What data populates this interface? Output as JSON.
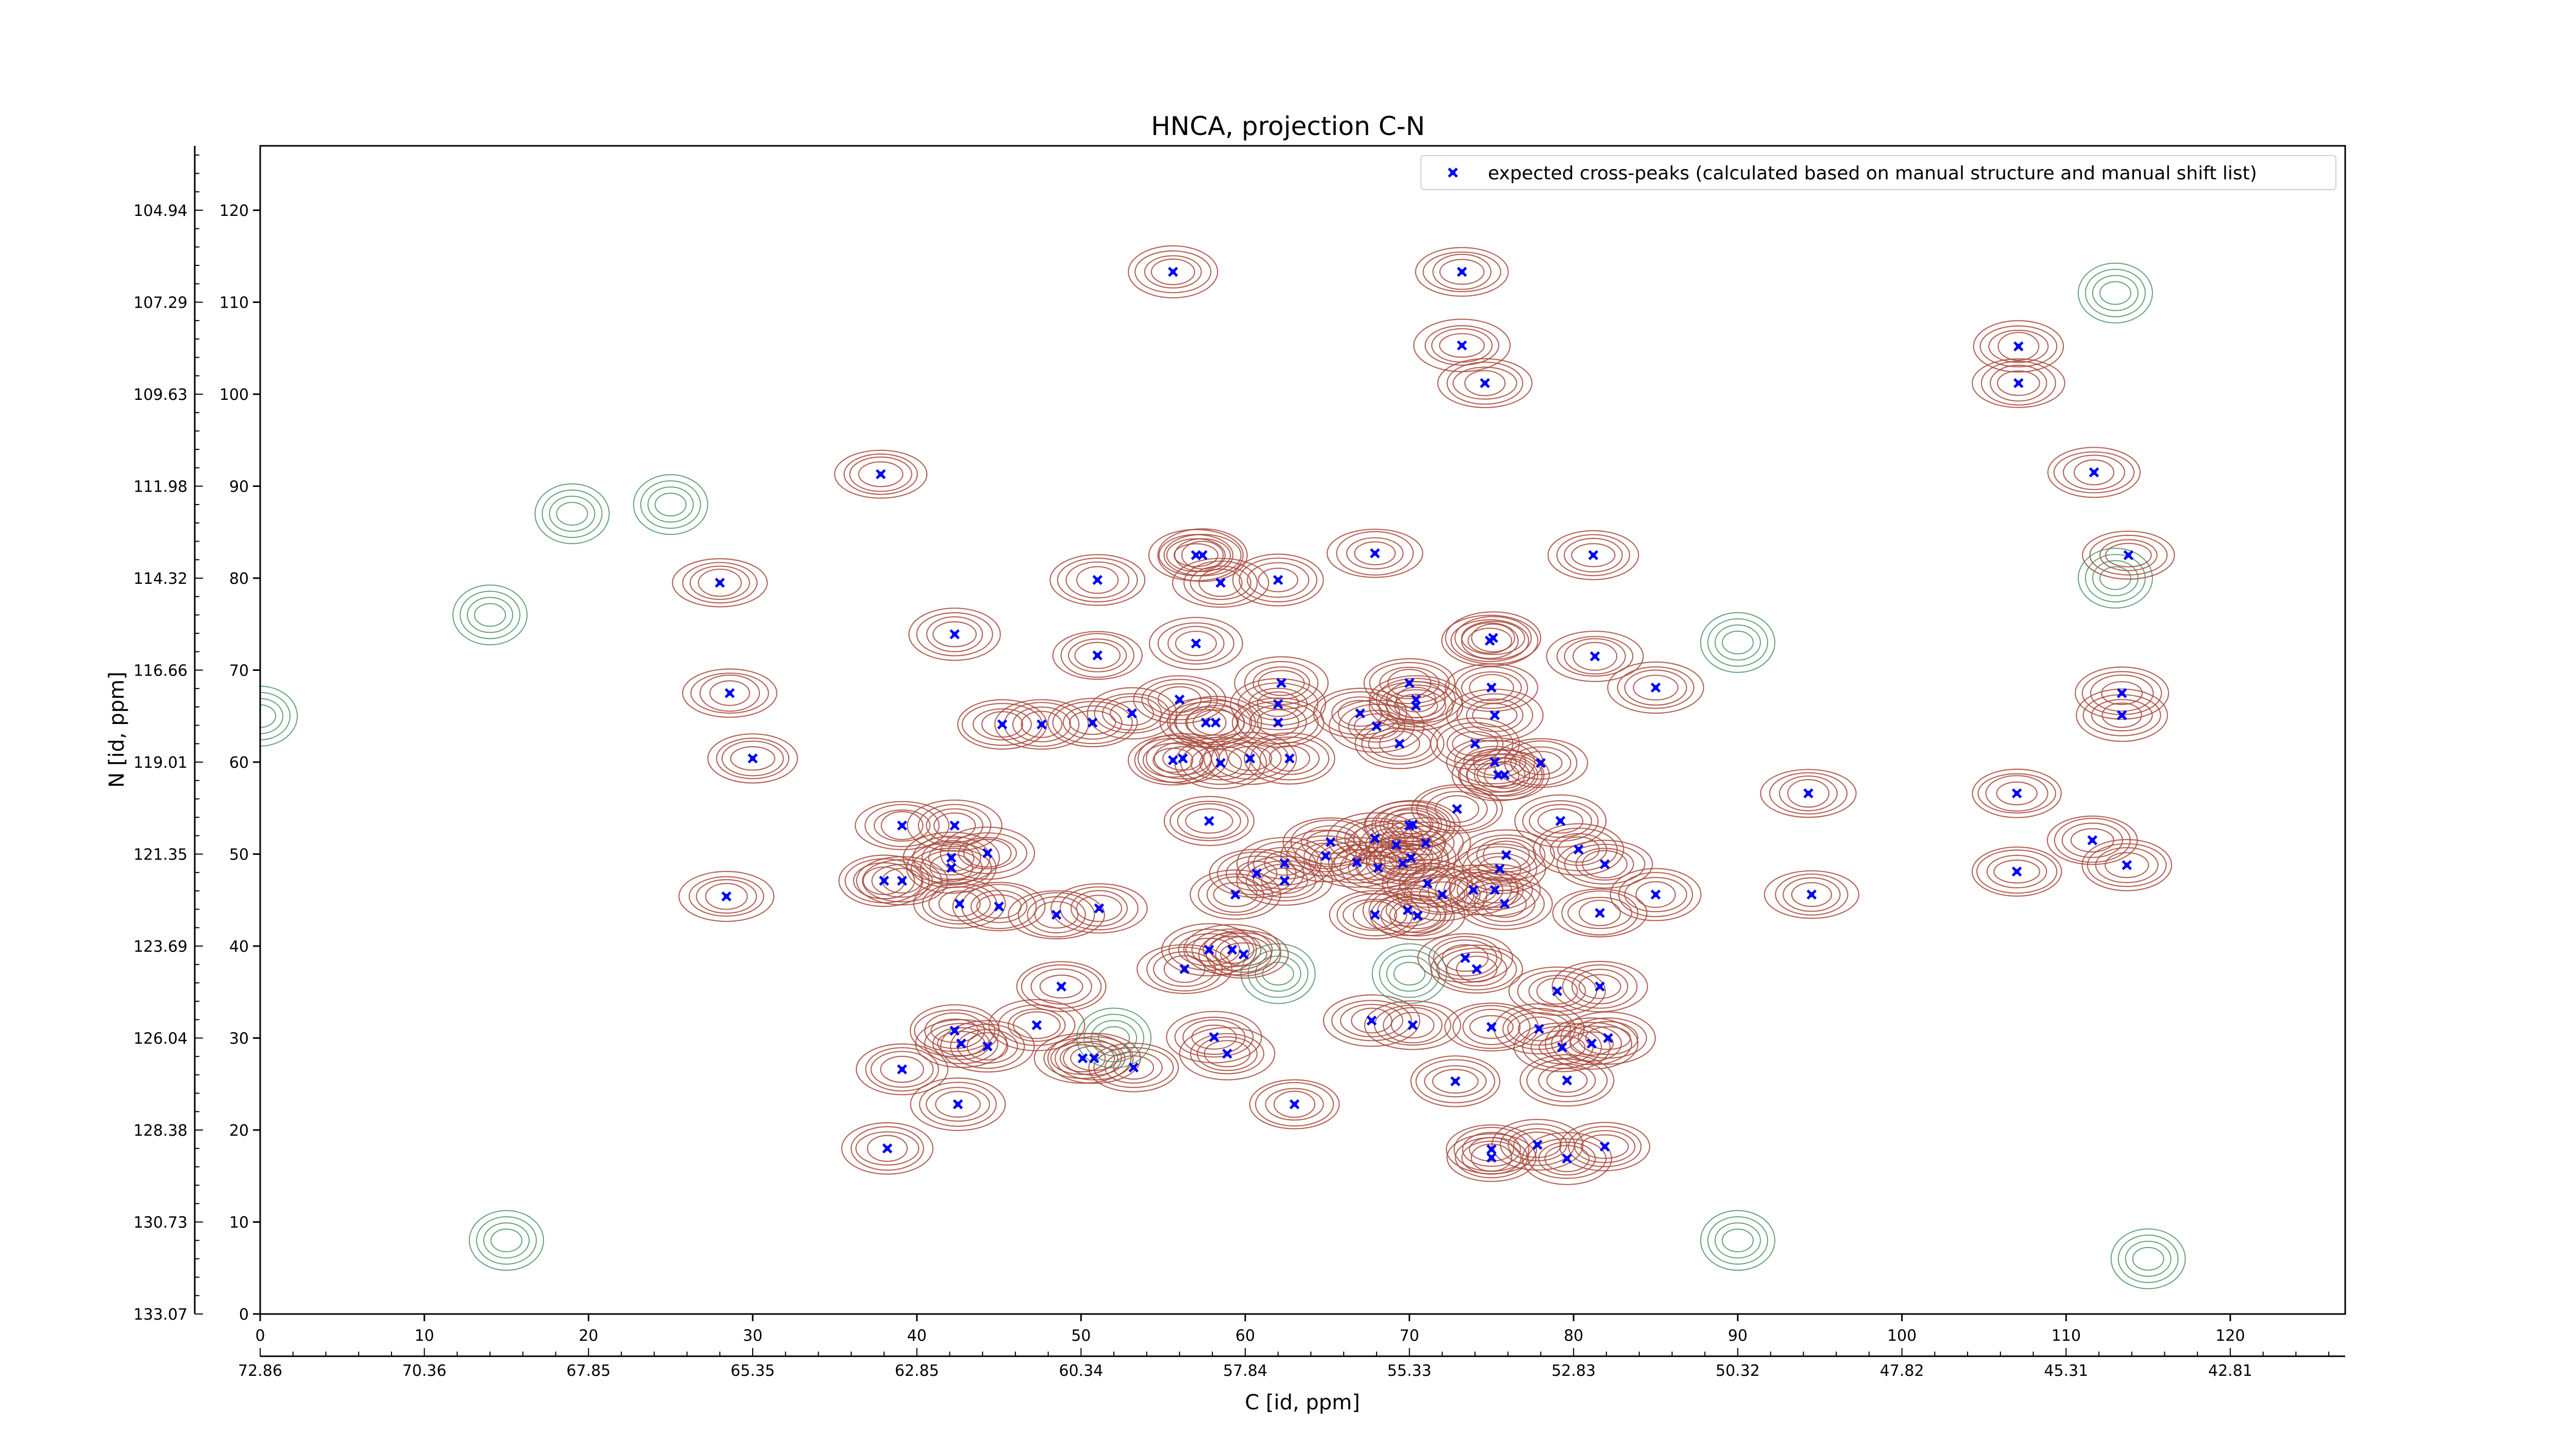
{
  "chart_data": {
    "type": "scatter",
    "title": "HNCA, projection C-N",
    "xlabel": "C [id, ppm]",
    "ylabel": "N [id, ppm]",
    "xlim": [
      0,
      127
    ],
    "ylim": [
      0,
      127
    ],
    "x_ticks": [
      0,
      10,
      20,
      30,
      40,
      50,
      60,
      70,
      80,
      90,
      100,
      110,
      120
    ],
    "y_ticks": [
      0,
      10,
      20,
      30,
      40,
      50,
      60,
      70,
      80,
      90,
      100,
      110,
      120
    ],
    "x_ppm_ticks": [
      {
        "pos": 0,
        "label": "72.86"
      },
      {
        "pos": 10,
        "label": "70.36"
      },
      {
        "pos": 20,
        "label": "67.85"
      },
      {
        "pos": 30,
        "label": "65.35"
      },
      {
        "pos": 40,
        "label": "62.85"
      },
      {
        "pos": 50,
        "label": "60.34"
      },
      {
        "pos": 60,
        "label": "57.84"
      },
      {
        "pos": 70,
        "label": "55.33"
      },
      {
        "pos": 80,
        "label": "52.83"
      },
      {
        "pos": 90,
        "label": "50.32"
      },
      {
        "pos": 100,
        "label": "47.82"
      },
      {
        "pos": 110,
        "label": "45.31"
      },
      {
        "pos": 120,
        "label": "42.81"
      }
    ],
    "y_ppm_ticks": [
      {
        "pos": 0,
        "label": "133.07"
      },
      {
        "pos": 10,
        "label": "130.73"
      },
      {
        "pos": 20,
        "label": "128.38"
      },
      {
        "pos": 30,
        "label": "126.04"
      },
      {
        "pos": 40,
        "label": "123.69"
      },
      {
        "pos": 50,
        "label": "121.35"
      },
      {
        "pos": 60,
        "label": "119.01"
      },
      {
        "pos": 70,
        "label": "116.66"
      },
      {
        "pos": 80,
        "label": "114.32"
      },
      {
        "pos": 90,
        "label": "111.98"
      },
      {
        "pos": 100,
        "label": "109.63"
      },
      {
        "pos": 110,
        "label": "107.29"
      },
      {
        "pos": 120,
        "label": "104.94"
      }
    ],
    "grid": false,
    "legend_position": "top-right",
    "series": [
      {
        "name": "expected cross-peaks (calculated based on manual structure and manual shift list)",
        "color": "#0000ff",
        "marker": "x",
        "points": [
          [
            55.6,
            113.3
          ],
          [
            73.2,
            113.3
          ],
          [
            73.2,
            105.3
          ],
          [
            74.6,
            101.2
          ],
          [
            107.1,
            105.2
          ],
          [
            107.1,
            101.2
          ],
          [
            37.8,
            91.3
          ],
          [
            111.7,
            91.5
          ],
          [
            28.0,
            79.5
          ],
          [
            51.0,
            79.8
          ],
          [
            57.0,
            82.5
          ],
          [
            57.4,
            82.5
          ],
          [
            58.5,
            79.5
          ],
          [
            62.0,
            79.8
          ],
          [
            67.9,
            82.7
          ],
          [
            81.2,
            82.5
          ],
          [
            113.8,
            82.5
          ],
          [
            42.3,
            73.9
          ],
          [
            51.0,
            71.6
          ],
          [
            57.0,
            72.9
          ],
          [
            74.9,
            73.2
          ],
          [
            75.1,
            73.5
          ],
          [
            81.3,
            71.5
          ],
          [
            85.0,
            68.1
          ],
          [
            28.6,
            67.5
          ],
          [
            45.2,
            64.1
          ],
          [
            47.6,
            64.1
          ],
          [
            50.7,
            64.3
          ],
          [
            53.1,
            65.3
          ],
          [
            56.0,
            66.8
          ],
          [
            57.6,
            64.3
          ],
          [
            58.2,
            64.3
          ],
          [
            62.2,
            68.6
          ],
          [
            62.0,
            66.3
          ],
          [
            62.0,
            64.3
          ],
          [
            67.0,
            65.3
          ],
          [
            68.0,
            63.9
          ],
          [
            70.0,
            68.6
          ],
          [
            70.4,
            66.8
          ],
          [
            70.4,
            66.1
          ],
          [
            75.0,
            68.1
          ],
          [
            75.2,
            65.1
          ],
          [
            113.4,
            67.5
          ],
          [
            113.4,
            65.1
          ],
          [
            30.0,
            60.4
          ],
          [
            55.6,
            60.2
          ],
          [
            56.2,
            60.4
          ],
          [
            58.5,
            59.9
          ],
          [
            60.3,
            60.4
          ],
          [
            62.7,
            60.4
          ],
          [
            69.4,
            62.0
          ],
          [
            74.0,
            62.0
          ],
          [
            75.2,
            60.0
          ],
          [
            75.4,
            58.6
          ],
          [
            75.8,
            58.6
          ],
          [
            78.0,
            59.9
          ],
          [
            94.3,
            56.6
          ],
          [
            107.0,
            56.6
          ],
          [
            39.1,
            53.1
          ],
          [
            42.3,
            53.1
          ],
          [
            57.8,
            53.6
          ],
          [
            72.9,
            54.9
          ],
          [
            79.2,
            53.6
          ],
          [
            65.2,
            51.3
          ],
          [
            67.9,
            51.7
          ],
          [
            69.2,
            51.0
          ],
          [
            70.0,
            53.1
          ],
          [
            70.2,
            53.2
          ],
          [
            71.0,
            51.2
          ],
          [
            75.9,
            49.9
          ],
          [
            80.3,
            50.5
          ],
          [
            42.1,
            49.6
          ],
          [
            42.1,
            48.5
          ],
          [
            44.3,
            50.1
          ],
          [
            62.4,
            49.0
          ],
          [
            64.9,
            49.8
          ],
          [
            69.6,
            49.0
          ],
          [
            70.1,
            49.6
          ],
          [
            75.5,
            48.4
          ],
          [
            81.9,
            48.9
          ],
          [
            111.6,
            51.5
          ],
          [
            113.7,
            48.8
          ],
          [
            38.0,
            47.1
          ],
          [
            39.1,
            47.1
          ],
          [
            60.7,
            47.9
          ],
          [
            62.4,
            47.1
          ],
          [
            66.8,
            49.1
          ],
          [
            68.1,
            48.5
          ],
          [
            71.1,
            46.8
          ],
          [
            107.0,
            48.1
          ],
          [
            28.4,
            45.4
          ],
          [
            42.6,
            44.6
          ],
          [
            45.0,
            44.3
          ],
          [
            48.5,
            43.4
          ],
          [
            51.1,
            44.1
          ],
          [
            59.4,
            45.6
          ],
          [
            67.9,
            43.4
          ],
          [
            69.9,
            43.9
          ],
          [
            70.5,
            43.3
          ],
          [
            72.0,
            45.6
          ],
          [
            73.9,
            46.1
          ],
          [
            75.2,
            46.1
          ],
          [
            75.8,
            44.6
          ],
          [
            81.6,
            43.6
          ],
          [
            85.0,
            45.6
          ],
          [
            94.5,
            45.6
          ],
          [
            57.8,
            39.6
          ],
          [
            59.2,
            39.6
          ],
          [
            59.9,
            39.1
          ],
          [
            56.3,
            37.5
          ],
          [
            73.4,
            38.7
          ],
          [
            74.1,
            37.5
          ],
          [
            48.8,
            35.6
          ],
          [
            79.0,
            35.1
          ],
          [
            81.6,
            35.6
          ],
          [
            42.3,
            30.8
          ],
          [
            47.3,
            31.4
          ],
          [
            58.1,
            30.1
          ],
          [
            67.7,
            31.9
          ],
          [
            70.2,
            31.4
          ],
          [
            75.0,
            31.2
          ],
          [
            77.9,
            31.0
          ],
          [
            42.7,
            29.4
          ],
          [
            44.3,
            29.1
          ],
          [
            50.1,
            27.8
          ],
          [
            50.8,
            27.8
          ],
          [
            53.2,
            26.8
          ],
          [
            58.9,
            28.3
          ],
          [
            82.1,
            30.0
          ],
          [
            81.1,
            29.4
          ],
          [
            79.3,
            29.0
          ],
          [
            39.1,
            26.6
          ],
          [
            72.8,
            25.3
          ],
          [
            79.6,
            25.4
          ],
          [
            42.5,
            22.8
          ],
          [
            63.0,
            22.8
          ],
          [
            38.2,
            18.0
          ],
          [
            75.0,
            17.9
          ],
          [
            75.0,
            17.0
          ],
          [
            77.8,
            18.4
          ],
          [
            79.6,
            16.9
          ],
          [
            81.9,
            18.2
          ]
        ]
      }
    ]
  }
}
